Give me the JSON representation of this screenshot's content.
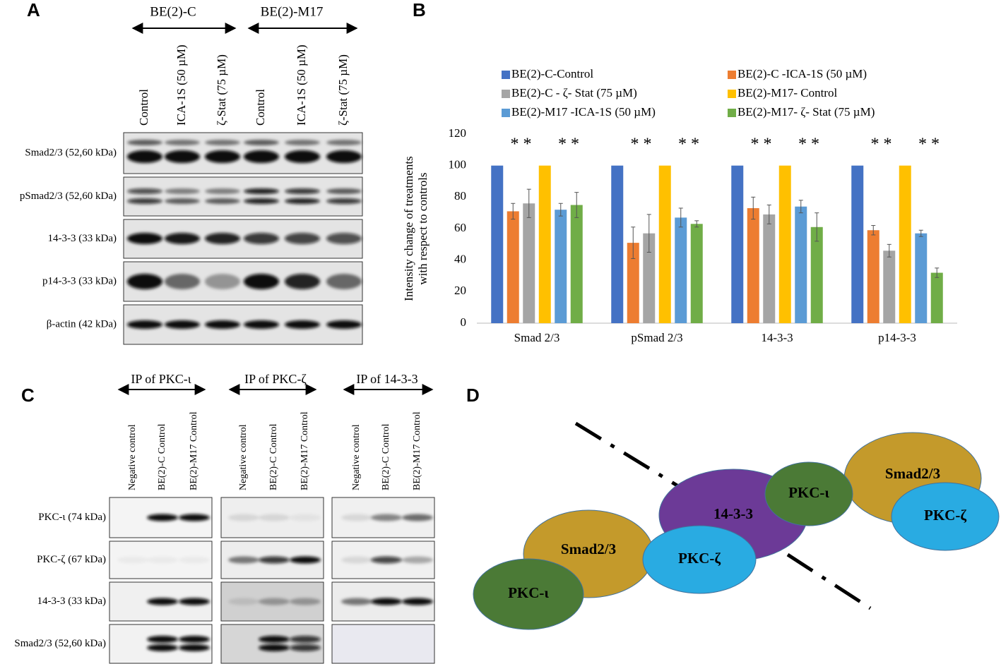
{
  "panel_labels": [
    "A",
    "B",
    "C",
    "D"
  ],
  "panel_a": {
    "groups": [
      {
        "title": "BE(2)-C",
        "lanes": [
          "Control",
          "ICA-1S  (50 µM)",
          "ζ-Stat  (75 µM)"
        ]
      },
      {
        "title": "BE(2)-M17",
        "lanes": [
          "Control",
          "ICA-1S  (50 µM)",
          "ζ-Stat  (75 µM)"
        ]
      }
    ],
    "rows": [
      "Smad2/3 (52,60 kDa)",
      "pSmad2/3 (52,60 kDa)",
      "14-3-3 (33 kDa)",
      "p14-3-3 (33 kDa)",
      "β-actin (42 kDa)"
    ]
  },
  "chart_data": {
    "type": "bar",
    "ylabel": [
      "Intensity change  of treatments",
      "with respect to controls"
    ],
    "categories": [
      "Smad 2/3",
      "pSmad 2/3",
      "14-3-3",
      "p14-3-3"
    ],
    "series": [
      {
        "name": "BE(2)-C-Control",
        "color": "#4472c4",
        "values": [
          100,
          100,
          100,
          100
        ],
        "errors": [
          null,
          null,
          null,
          null
        ]
      },
      {
        "name": "BE(2)-C -ICA-1S (50 µM)",
        "color": "#ed7d31",
        "values": [
          71,
          51,
          73,
          59
        ],
        "errors": [
          5,
          10,
          7,
          3
        ]
      },
      {
        "name": "BE(2)-C - ζ- Stat (75 µM)",
        "color": "#a5a5a5",
        "values": [
          76,
          57,
          69,
          46
        ],
        "errors": [
          9,
          12,
          6,
          4
        ]
      },
      {
        "name": "BE(2)-M17- Control",
        "color": "#ffc000",
        "values": [
          100,
          100,
          100,
          100
        ],
        "errors": [
          null,
          null,
          null,
          null
        ]
      },
      {
        "name": "BE(2)-M17 -ICA-1S (50 µM)",
        "color": "#5b9bd5",
        "values": [
          72,
          67,
          74,
          57
        ],
        "errors": [
          4,
          6,
          4,
          2
        ]
      },
      {
        "name": "BE(2)-M17- ζ- Stat (75 µM)",
        "color": "#70ad47",
        "values": [
          75,
          63,
          61,
          32
        ],
        "errors": [
          8,
          2,
          9,
          3
        ]
      }
    ],
    "significance": [
      "* *",
      "* *",
      "* *",
      "* *",
      "* *",
      "* *",
      "* *",
      "* *"
    ],
    "ylim": [
      0,
      120
    ],
    "yticks": [
      0,
      20,
      40,
      60,
      80,
      100,
      120
    ],
    "grid": false
  },
  "panel_c": {
    "groups": [
      {
        "title": "IP of PKC-ι",
        "lanes": [
          "Negative control",
          "BE(2)-C Control",
          "BE(2)-M17 Control"
        ]
      },
      {
        "title": "IP of PKC-ζ",
        "lanes": [
          "Negative control",
          "BE(2)-C Control",
          "BE(2)-M17 Control"
        ]
      },
      {
        "title": "IP of 14-3-3",
        "lanes": [
          "Negative control",
          "BE(2)-C Control",
          "BE(2)-M17 Control"
        ]
      }
    ],
    "rows": [
      "PKC-ι (74 kDa)",
      "PKC-ζ (67 kDa)",
      "14-3-3 (33 kDa)",
      "Smad2/3 (52,60 kDa)"
    ]
  },
  "panel_d": {
    "nodes": [
      "Smad2/3",
      "PKC-ι",
      "14-3-3",
      "PKC-ζ",
      "Smad2/3",
      "PKC-ι",
      "PKC-ζ"
    ]
  }
}
